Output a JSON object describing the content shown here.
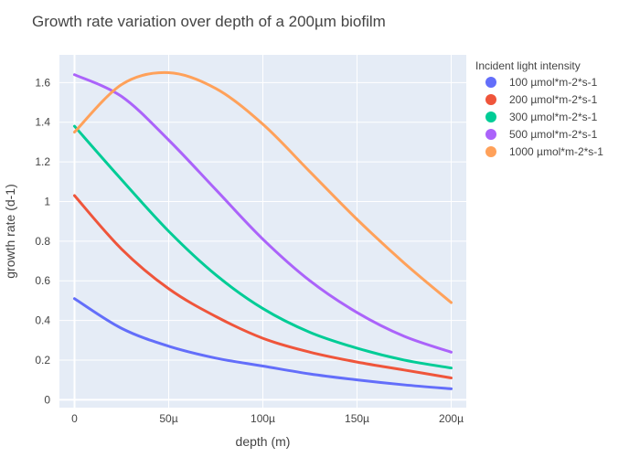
{
  "chart_data": {
    "type": "line",
    "title": "Growth rate variation over depth of a 200µm biofilm",
    "xlabel": "depth (m)",
    "ylabel": "growth rate (d-1)",
    "xlim": [
      -8e-06,
      0.000208
    ],
    "ylim": [
      -0.04,
      1.74
    ],
    "xticks": [
      0,
      5e-05,
      0.0001,
      0.00015,
      0.0002
    ],
    "xtick_labels": [
      "0",
      "50µ",
      "100µ",
      "150µ",
      "200µ"
    ],
    "yticks": [
      0,
      0.2,
      0.4,
      0.6,
      0.8,
      1,
      1.2,
      1.4,
      1.6
    ],
    "ytick_labels": [
      "0",
      "0.2",
      "0.4",
      "0.6",
      "0.8",
      "1",
      "1.2",
      "1.4",
      "1.6"
    ],
    "grid": true,
    "legend_title": "Incident light intensity",
    "legend_position": "right",
    "x": [
      0,
      2.5e-05,
      5e-05,
      7.5e-05,
      0.0001,
      0.000125,
      0.00015,
      0.000175,
      0.0002
    ],
    "series": [
      {
        "name": "100 µmol*m-2*s-1",
        "color": "#636efa",
        "values": [
          0.51,
          0.36,
          0.27,
          0.21,
          0.17,
          0.13,
          0.1,
          0.075,
          0.055
        ]
      },
      {
        "name": "200 µmol*m-2*s-1",
        "color": "#EF553B",
        "values": [
          1.03,
          0.76,
          0.56,
          0.42,
          0.31,
          0.24,
          0.19,
          0.15,
          0.11
        ]
      },
      {
        "name": "300 µmol*m-2*s-1",
        "color": "#00cc96",
        "values": [
          1.38,
          1.11,
          0.85,
          0.63,
          0.46,
          0.34,
          0.26,
          0.2,
          0.16
        ]
      },
      {
        "name": "500 µmol*m-2*s-1",
        "color": "#ab63fa",
        "values": [
          1.64,
          1.53,
          1.31,
          1.06,
          0.81,
          0.6,
          0.44,
          0.32,
          0.24
        ]
      },
      {
        "name": "1000 µmol*m-2*s-1",
        "color": "#FFA15A",
        "values": [
          1.35,
          1.59,
          1.65,
          1.57,
          1.39,
          1.15,
          0.91,
          0.69,
          0.49
        ]
      }
    ]
  }
}
